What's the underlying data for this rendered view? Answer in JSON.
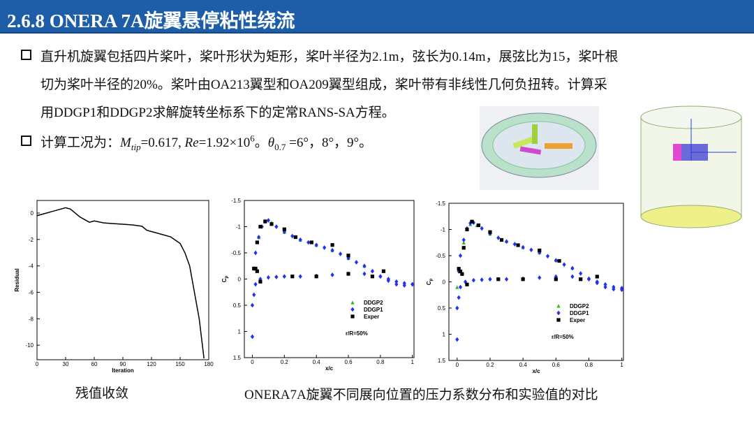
{
  "header": {
    "title": "2.6.8 ONERA 7A旋翼悬停粘性绕流"
  },
  "bullets": [
    {
      "lines": [
        "直升机旋翼包括四片桨叶，桨叶形状为矩形，桨叶半径为2.1m，弦长为0.14m，展弦比为15，桨叶根",
        "切为桨叶半径的20%。桨叶由OA213翼型和OA209翼型组成，桨叶带有非线性几何负扭转。计算采",
        "用DDGP1和DDGP2求解旋转坐标系下的定常RANS-SA方程。"
      ]
    },
    {
      "parts": [
        "计算工况为：",
        "M",
        "tip",
        "=0.617, ",
        "Re",
        "=1.92×10",
        "6",
        "。",
        "θ",
        "0.7",
        " =6°，8°，9°。"
      ]
    }
  ],
  "captions": [
    "残值收敛",
    "ONERA7A旋翼不同展向位置的压力系数分布和实验值的对比"
  ],
  "chart_data": [
    {
      "type": "line",
      "xlabel": "Iteration",
      "ylabel": "Residual",
      "xlim": [
        0,
        180
      ],
      "ylim": [
        -11.1,
        0.95
      ],
      "xticks": [
        0,
        30,
        60,
        90,
        120,
        150,
        180
      ],
      "yticks": [
        0,
        -2,
        -4,
        -6,
        -8,
        -10
      ],
      "series": [
        {
          "color": "#000000",
          "x": [
            0,
            5,
            10,
            15,
            20,
            25,
            30,
            35,
            40,
            45,
            50,
            55,
            60,
            70,
            80,
            90,
            100,
            110,
            115,
            120,
            125,
            130,
            140,
            150,
            155,
            160,
            165,
            170,
            175
          ],
          "values": [
            -0.2,
            -0.1,
            0,
            0.1,
            0.2,
            0.3,
            0.4,
            0.3,
            0,
            -0.3,
            -0.5,
            -0.7,
            -0.6,
            -0.75,
            -0.8,
            -0.85,
            -0.9,
            -1,
            -1.3,
            -1.4,
            -1.5,
            -1.6,
            -1.8,
            -2.3,
            -3,
            -4,
            -6,
            -8,
            -11
          ]
        }
      ]
    },
    {
      "type": "scatter",
      "xlabel": "x/c",
      "ylabel": "C",
      "ylabel_sub": "p",
      "annotation": "r/R=50%",
      "xlim": [
        -0.05,
        1.01
      ],
      "ylim": [
        1.5,
        -1.5
      ],
      "xticks": [
        0,
        0.2,
        0.4,
        0.6,
        0.8,
        1
      ],
      "yticks": [
        -1.5,
        -1,
        -0.5,
        0,
        0.5,
        1,
        1.5
      ],
      "series": [
        {
          "name": "DDGP2",
          "color": "#22bb22",
          "marker": "triangle",
          "x": [
            0.04,
            0.08,
            0.12,
            0.2,
            0.3,
            0.4,
            0.5,
            0.6,
            0.7
          ],
          "values": [
            -0.8,
            -1.1,
            -1.08,
            -0.9,
            -0.75,
            -0.65,
            -0.55,
            -0.4,
            -0.25
          ]
        },
        {
          "name": "DDGP1",
          "color": "#2233ee",
          "marker": "diamond",
          "x": [
            0,
            0.01,
            0.02,
            0.04,
            0.06,
            0.08,
            0.1,
            0.15,
            0.2,
            0.25,
            0.3,
            0.35,
            0.4,
            0.45,
            0.5,
            0.55,
            0.6,
            0.65,
            0.7,
            0.75,
            0.8,
            0.85,
            0.9,
            0.95,
            1,
            0,
            0.01,
            0.02,
            0.05,
            0.1,
            0.15,
            0.2,
            0.3,
            0.4,
            0.5,
            0.6,
            0.7,
            0.8,
            0.85,
            0.9,
            0.95,
            1
          ],
          "values": [
            0.5,
            -0.2,
            -0.5,
            -0.8,
            -1,
            -1.1,
            -1.12,
            -1,
            -0.9,
            -0.82,
            -0.75,
            -0.7,
            -0.65,
            -0.6,
            -0.55,
            -0.48,
            -0.4,
            -0.32,
            -0.25,
            -0.15,
            -0.05,
            0.03,
            0.1,
            0.12,
            0.1,
            1.1,
            0.3,
            0.1,
            0,
            -0.03,
            -0.04,
            -0.05,
            -0.05,
            -0.06,
            -0.08,
            -0.1,
            -0.1,
            -0.05,
            0,
            0.05,
            0.08,
            0.1
          ]
        },
        {
          "name": "Exper",
          "color": "#000000",
          "marker": "square",
          "x": [
            0.02,
            0.03,
            0.05,
            0.08,
            0.12,
            0.2,
            0.27,
            0.37,
            0.5,
            0.6,
            0.82,
            0.01,
            0.03,
            0.05,
            0.25,
            0.4,
            0.6,
            0.75
          ],
          "values": [
            -0.2,
            -0.7,
            -1,
            -1.1,
            -1.05,
            -0.95,
            -0.8,
            -0.7,
            -0.65,
            -0.45,
            -0.15,
            -0.2,
            -0.15,
            0.05,
            -0.05,
            -0.05,
            -0.1,
            -0.05
          ]
        }
      ]
    },
    {
      "type": "scatter",
      "xlabel": "x/c",
      "ylabel": "C",
      "ylabel_sub": "p",
      "annotation": "r/R=50%",
      "xlim": [
        -0.05,
        1.01
      ],
      "ylim": [
        1.5,
        -1.5
      ],
      "xticks": [
        0,
        0.2,
        0.4,
        0.6,
        0.8,
        1
      ],
      "yticks": [
        -1.5,
        -1,
        -0.5,
        0,
        0.5,
        1,
        1.5
      ],
      "series": [
        {
          "name": "DDGP2",
          "color": "#22bb22",
          "marker": "triangle",
          "x": [
            0,
            0.04,
            0.08,
            0.12,
            0.2,
            0.3,
            0.4,
            0.5,
            0.6,
            0.7
          ],
          "values": [
            0.1,
            -0.75,
            -1.1,
            -1.08,
            -0.92,
            -0.78,
            -0.66,
            -0.56,
            -0.42,
            -0.27
          ]
        },
        {
          "name": "DDGP1",
          "color": "#2233ee",
          "marker": "diamond",
          "x": [
            0,
            0.01,
            0.02,
            0.04,
            0.06,
            0.08,
            0.1,
            0.15,
            0.2,
            0.25,
            0.3,
            0.35,
            0.4,
            0.45,
            0.5,
            0.55,
            0.6,
            0.65,
            0.7,
            0.75,
            0.8,
            0.85,
            0.9,
            0.95,
            1,
            0,
            0.01,
            0.02,
            0.05,
            0.1,
            0.15,
            0.2,
            0.3,
            0.4,
            0.5,
            0.6,
            0.7,
            0.8,
            0.85,
            0.9,
            0.95,
            1
          ],
          "values": [
            0.5,
            -0.2,
            -0.5,
            -0.8,
            -1.02,
            -1.12,
            -1.13,
            -1.02,
            -0.92,
            -0.84,
            -0.77,
            -0.72,
            -0.66,
            -0.61,
            -0.56,
            -0.49,
            -0.41,
            -0.33,
            -0.26,
            -0.16,
            -0.06,
            0.02,
            0.1,
            0.14,
            0.12,
            1.1,
            0.3,
            0.1,
            0,
            -0.03,
            -0.04,
            -0.05,
            -0.05,
            -0.06,
            -0.08,
            -0.1,
            -0.1,
            -0.05,
            0,
            0.05,
            0.1,
            0.15
          ]
        },
        {
          "name": "Exper",
          "color": "#000000",
          "marker": "square",
          "x": [
            0.02,
            0.04,
            0.06,
            0.09,
            0.13,
            0.2,
            0.27,
            0.37,
            0.5,
            0.62,
            0.85,
            0.01,
            0.03,
            0.06,
            0.25,
            0.4,
            0.6,
            0.75
          ],
          "values": [
            -0.2,
            -0.65,
            -1,
            -1.15,
            -1.08,
            -0.95,
            -0.8,
            -0.7,
            -0.6,
            -0.4,
            -0.1,
            -0.25,
            -0.15,
            0.05,
            -0.05,
            -0.05,
            -0.05,
            -0.05
          ]
        }
      ]
    }
  ]
}
